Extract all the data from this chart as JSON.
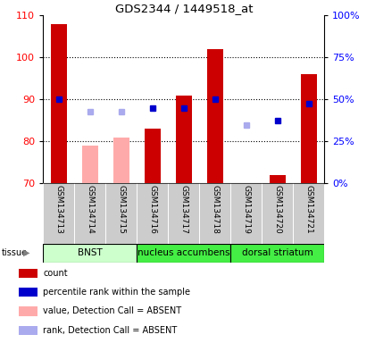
{
  "title": "GDS2344 / 1449518_at",
  "samples": [
    "GSM134713",
    "GSM134714",
    "GSM134715",
    "GSM134716",
    "GSM134717",
    "GSM134718",
    "GSM134719",
    "GSM134720",
    "GSM134721"
  ],
  "bar_values": [
    108,
    null,
    null,
    83,
    91,
    102,
    null,
    72,
    96
  ],
  "bar_absent_values": [
    null,
    79,
    81,
    null,
    null,
    null,
    null,
    null,
    null
  ],
  "bar_color_present": "#cc0000",
  "bar_color_absent": "#ffaaaa",
  "rank_present": [
    90,
    null,
    null,
    88,
    88,
    90,
    null,
    85,
    89
  ],
  "rank_absent": [
    null,
    87,
    87,
    null,
    null,
    null,
    84,
    null,
    null
  ],
  "rank_present_color": "#0000cc",
  "rank_absent_color": "#aaaaee",
  "ylim_left": [
    70,
    110
  ],
  "ylim_right": [
    0,
    100
  ],
  "yticks_left": [
    70,
    80,
    90,
    100,
    110
  ],
  "yticks_right": [
    0,
    25,
    50,
    75,
    100
  ],
  "ytick_labels_right": [
    "0%",
    "25%",
    "50%",
    "75%",
    "100%"
  ],
  "tissue_groups": [
    {
      "label": "BNST",
      "start": 0,
      "end": 3,
      "color": "#ccffcc"
    },
    {
      "label": "nucleus accumbens",
      "start": 3,
      "end": 6,
      "color": "#44ee44"
    },
    {
      "label": "dorsal striatum",
      "start": 6,
      "end": 9,
      "color": "#44ee44"
    }
  ],
  "legend_items": [
    {
      "label": "count",
      "color": "#cc0000"
    },
    {
      "label": "percentile rank within the sample",
      "color": "#0000cc"
    },
    {
      "label": "value, Detection Call = ABSENT",
      "color": "#ffaaaa"
    },
    {
      "label": "rank, Detection Call = ABSENT",
      "color": "#aaaaee"
    }
  ],
  "sample_bg_color": "#cccccc",
  "grid_lines": [
    80,
    90,
    100
  ],
  "bar_width": 0.5
}
